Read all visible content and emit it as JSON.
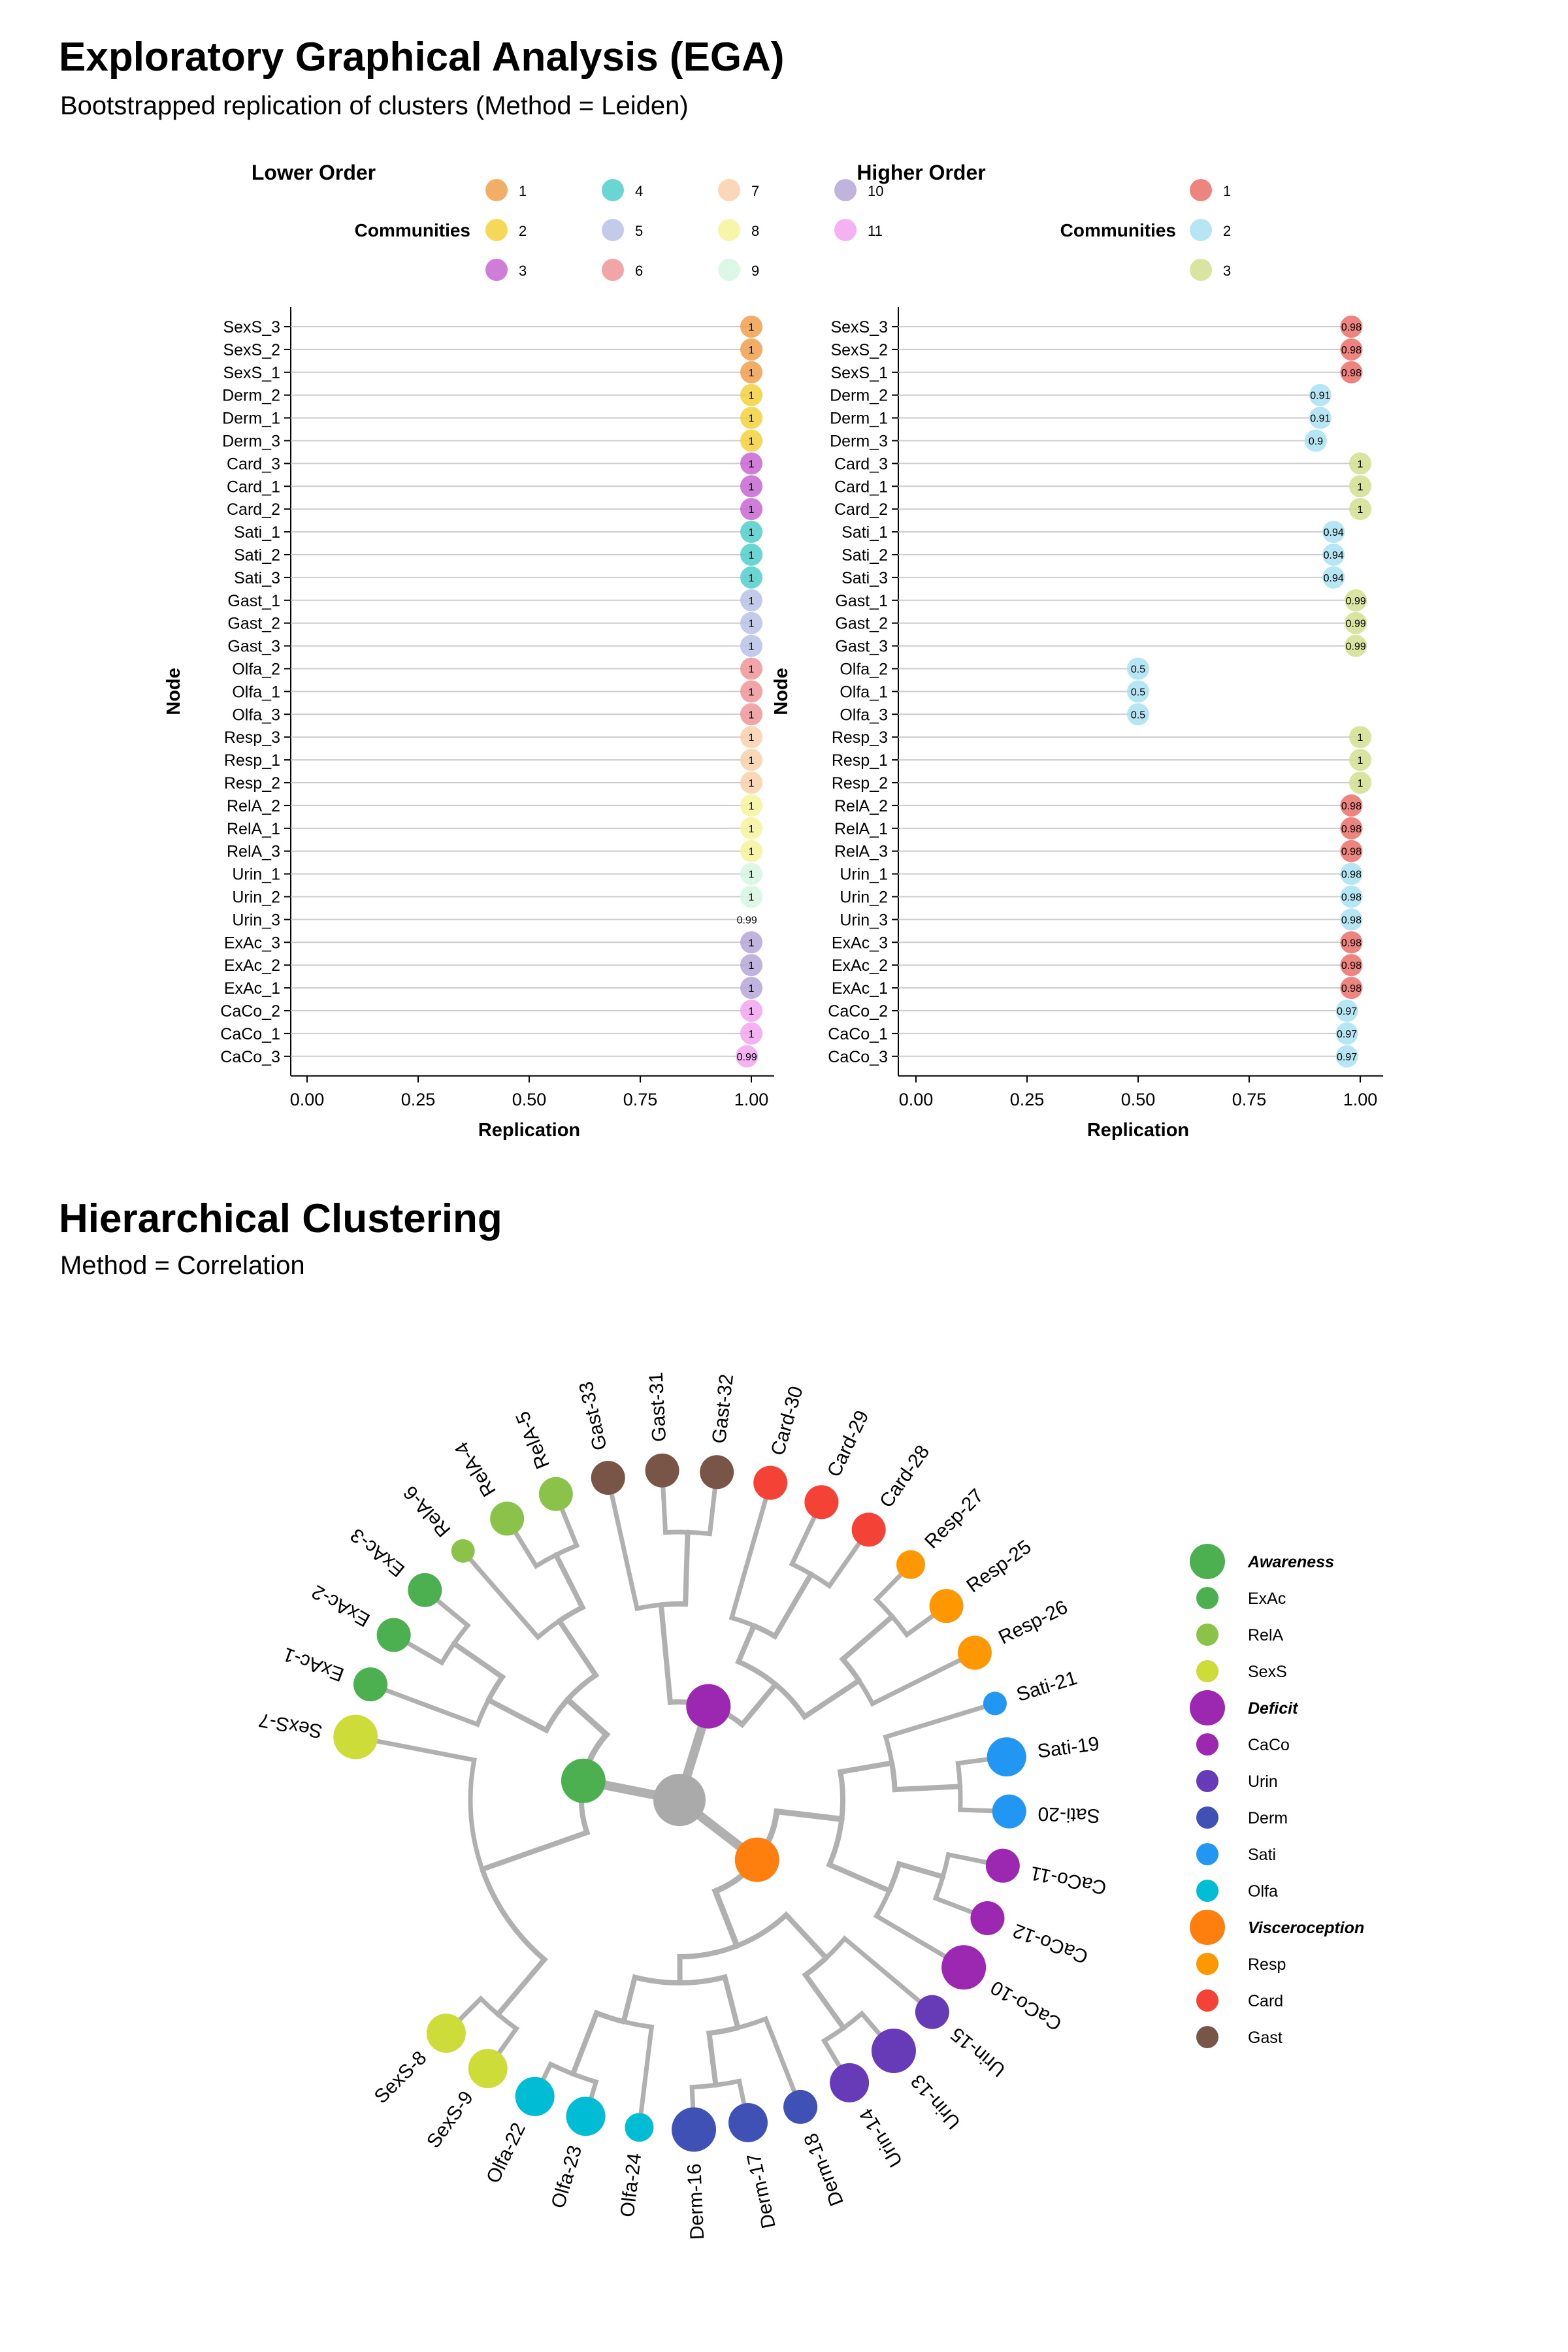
{
  "section1": {
    "title": "Exploratory Graphical Analysis (EGA)",
    "subtitle": "Bootstrapped replication of clusters (Method = Leiden)"
  },
  "section2": {
    "title": "Hierarchical Clustering",
    "subtitle": "Method = Correlation"
  },
  "chart_data": [
    {
      "type": "scatter",
      "title": "Lower Order",
      "xlabel": "Replication",
      "ylabel": "Node",
      "xlim": [
        0,
        1
      ],
      "xticks": [
        "0.00",
        "0.25",
        "0.50",
        "0.75",
        "1.00"
      ],
      "legend_title": "Communities",
      "legend_position": "top",
      "legend": [
        {
          "label": "1",
          "color": "#F0A04B"
        },
        {
          "label": "2",
          "color": "#F5D13C"
        },
        {
          "label": "3",
          "color": "#C766D2"
        },
        {
          "label": "4",
          "color": "#4FCFCB"
        },
        {
          "label": "5",
          "color": "#B7C3E6"
        },
        {
          "label": "6",
          "color": "#EE9597"
        },
        {
          "label": "7",
          "color": "#F8D0AA"
        },
        {
          "label": "8",
          "color": "#F6F39A"
        },
        {
          "label": "9",
          "color": "#D6F6E0"
        },
        {
          "label": "10",
          "color": "#B5A7D8"
        },
        {
          "label": "11",
          "color": "#F3A4F0"
        }
      ],
      "nodes": [
        "SexS_3",
        "SexS_2",
        "SexS_1",
        "Derm_2",
        "Derm_1",
        "Derm_3",
        "Card_3",
        "Card_1",
        "Card_2",
        "Sati_1",
        "Sati_2",
        "Sati_3",
        "Gast_1",
        "Gast_2",
        "Gast_3",
        "Olfa_2",
        "Olfa_1",
        "Olfa_3",
        "Resp_3",
        "Resp_1",
        "Resp_2",
        "RelA_2",
        "RelA_1",
        "RelA_3",
        "Urin_1",
        "Urin_2",
        "Urin_3",
        "ExAc_3",
        "ExAc_2",
        "ExAc_1",
        "CaCo_2",
        "CaCo_1",
        "CaCo_3"
      ],
      "values": [
        1,
        1,
        1,
        1,
        1,
        1,
        1,
        1,
        1,
        1,
        1,
        1,
        1,
        1,
        1,
        1,
        1,
        1,
        1,
        1,
        1,
        1,
        1,
        1,
        1,
        1,
        0.99,
        1,
        1,
        1,
        1,
        1,
        0.99
      ],
      "labels": [
        "1",
        "1",
        "1",
        "1",
        "1",
        "1",
        "1",
        "1",
        "1",
        "1",
        "1",
        "1",
        "1",
        "1",
        "1",
        "1",
        "1",
        "1",
        "1",
        "1",
        "1",
        "1",
        "1",
        "1",
        "1",
        "1",
        "0.99",
        "1",
        "1",
        "1",
        "1",
        "1",
        "0.99"
      ],
      "community": [
        1,
        1,
        1,
        2,
        2,
        2,
        3,
        3,
        3,
        4,
        4,
        4,
        5,
        5,
        5,
        6,
        6,
        6,
        7,
        7,
        7,
        8,
        8,
        8,
        9,
        9,
        null,
        10,
        10,
        10,
        11,
        11,
        11
      ]
    },
    {
      "type": "scatter",
      "title": "Higher Order",
      "xlabel": "Replication",
      "ylabel": "Node",
      "xlim": [
        0,
        1
      ],
      "xticks": [
        "0.00",
        "0.25",
        "0.50",
        "0.75",
        "1.00"
      ],
      "legend_title": "Communities",
      "legend_position": "top",
      "legend": [
        {
          "label": "1",
          "color": "#EB6E68"
        },
        {
          "label": "2",
          "color": "#A9E1F1"
        },
        {
          "label": "3",
          "color": "#D4DF91"
        }
      ],
      "nodes": [
        "SexS_3",
        "SexS_2",
        "SexS_1",
        "Derm_2",
        "Derm_1",
        "Derm_3",
        "Card_3",
        "Card_1",
        "Card_2",
        "Sati_1",
        "Sati_2",
        "Sati_3",
        "Gast_1",
        "Gast_2",
        "Gast_3",
        "Olfa_2",
        "Olfa_1",
        "Olfa_3",
        "Resp_3",
        "Resp_1",
        "Resp_2",
        "RelA_2",
        "RelA_1",
        "RelA_3",
        "Urin_1",
        "Urin_2",
        "Urin_3",
        "ExAc_3",
        "ExAc_2",
        "ExAc_1",
        "CaCo_2",
        "CaCo_1",
        "CaCo_3"
      ],
      "values": [
        0.98,
        0.98,
        0.98,
        0.91,
        0.91,
        0.9,
        1,
        1,
        1,
        0.94,
        0.94,
        0.94,
        0.99,
        0.99,
        0.99,
        0.5,
        0.5,
        0.5,
        1,
        1,
        1,
        0.98,
        0.98,
        0.98,
        0.98,
        0.98,
        0.98,
        0.98,
        0.98,
        0.98,
        0.97,
        0.97,
        0.97
      ],
      "labels": [
        "0.98",
        "0.98",
        "0.98",
        "0.91",
        "0.91",
        "0.9",
        "1",
        "1",
        "1",
        "0.94",
        "0.94",
        "0.94",
        "0.99",
        "0.99",
        "0.99",
        "0.5",
        "0.5",
        "0.5",
        "1",
        "1",
        "1",
        "0.98",
        "0.98",
        "0.98",
        "0.98",
        "0.98",
        "0.98",
        "0.98",
        "0.98",
        "0.98",
        "0.97",
        "0.97",
        "0.97"
      ],
      "community": [
        1,
        1,
        1,
        2,
        2,
        2,
        3,
        3,
        3,
        2,
        2,
        2,
        3,
        3,
        3,
        2,
        2,
        2,
        3,
        3,
        3,
        1,
        1,
        1,
        2,
        2,
        2,
        1,
        1,
        1,
        2,
        2,
        2
      ]
    },
    {
      "type": "dendrogram",
      "layout": "circular",
      "legend_position": "right",
      "legend": [
        {
          "label": "Awareness",
          "color": "#4CAF50",
          "header": true
        },
        {
          "label": "ExAc",
          "color": "#4CAF50"
        },
        {
          "label": "RelA",
          "color": "#8BC34A"
        },
        {
          "label": "SexS",
          "color": "#CDDC39"
        },
        {
          "label": "Deficit",
          "color": "#9C27B0",
          "header": true
        },
        {
          "label": "CaCo",
          "color": "#9C27B0"
        },
        {
          "label": "Urin",
          "color": "#673AB7"
        },
        {
          "label": "Derm",
          "color": "#3F51B5"
        },
        {
          "label": "Sati",
          "color": "#2196F3"
        },
        {
          "label": "Olfa",
          "color": "#00BCD4"
        },
        {
          "label": "Visceroception",
          "color": "#FF7F0E",
          "header": true
        },
        {
          "label": "Resp",
          "color": "#FF9800"
        },
        {
          "label": "Card",
          "color": "#F44336"
        },
        {
          "label": "Gast",
          "color": "#795548"
        }
      ],
      "clusters": [
        {
          "name": "Awareness",
          "color": "#4CAF50"
        },
        {
          "name": "Deficit",
          "color": "#9C27B0"
        },
        {
          "name": "Visceroception",
          "color": "#FF7F0E"
        }
      ],
      "leaves": [
        {
          "label": "SexS-7",
          "group": "SexS",
          "color": "#CDDC39",
          "size": 3
        },
        {
          "label": "ExAc-1",
          "group": "ExAc",
          "color": "#4CAF50",
          "size": 2
        },
        {
          "label": "ExAc-2",
          "group": "ExAc",
          "color": "#4CAF50",
          "size": 2
        },
        {
          "label": "ExAc-3",
          "group": "ExAc",
          "color": "#4CAF50",
          "size": 2
        },
        {
          "label": "RelA-6",
          "group": "RelA",
          "color": "#8BC34A",
          "size": 1
        },
        {
          "label": "RelA-4",
          "group": "RelA",
          "color": "#8BC34A",
          "size": 2
        },
        {
          "label": "RelA-5",
          "group": "RelA",
          "color": "#8BC34A",
          "size": 2
        },
        {
          "label": "Gast-33",
          "group": "Gast",
          "color": "#795548",
          "size": 2
        },
        {
          "label": "Gast-31",
          "group": "Gast",
          "color": "#795548",
          "size": 2
        },
        {
          "label": "Gast-32",
          "group": "Gast",
          "color": "#795548",
          "size": 2
        },
        {
          "label": "Card-30",
          "group": "Card",
          "color": "#F44336",
          "size": 2
        },
        {
          "label": "Card-29",
          "group": "Card",
          "color": "#F44336",
          "size": 2
        },
        {
          "label": "Card-28",
          "group": "Card",
          "color": "#F44336",
          "size": 2
        },
        {
          "label": "Resp-27",
          "group": "Resp",
          "color": "#FF9800",
          "size": 1.5
        },
        {
          "label": "Resp-25",
          "group": "Resp",
          "color": "#FF9800",
          "size": 2
        },
        {
          "label": "Resp-26",
          "group": "Resp",
          "color": "#FF9800",
          "size": 2
        },
        {
          "label": "Sati-21",
          "group": "Sati",
          "color": "#2196F3",
          "size": 1
        },
        {
          "label": "Sati-19",
          "group": "Sati",
          "color": "#2196F3",
          "size": 2.5
        },
        {
          "label": "Sati-20",
          "group": "Sati",
          "color": "#2196F3",
          "size": 2
        },
        {
          "label": "CaCo-11",
          "group": "CaCo",
          "color": "#9C27B0",
          "size": 2
        },
        {
          "label": "CaCo-12",
          "group": "CaCo",
          "color": "#9C27B0",
          "size": 2
        },
        {
          "label": "CaCo-10",
          "group": "CaCo",
          "color": "#9C27B0",
          "size": 3
        },
        {
          "label": "Urin-15",
          "group": "Urin",
          "color": "#673AB7",
          "size": 2
        },
        {
          "label": "Urin-13",
          "group": "Urin",
          "color": "#673AB7",
          "size": 3
        },
        {
          "label": "Urin-14",
          "group": "Urin",
          "color": "#673AB7",
          "size": 2.5
        },
        {
          "label": "Derm-18",
          "group": "Derm",
          "color": "#3F51B5",
          "size": 2
        },
        {
          "label": "Derm-17",
          "group": "Derm",
          "color": "#3F51B5",
          "size": 2.5
        },
        {
          "label": "Derm-16",
          "group": "Derm",
          "color": "#3F51B5",
          "size": 3
        },
        {
          "label": "Olfa-24",
          "group": "Olfa",
          "color": "#00BCD4",
          "size": 1.5
        },
        {
          "label": "Olfa-23",
          "group": "Olfa",
          "color": "#00BCD4",
          "size": 2.5
        },
        {
          "label": "Olfa-22",
          "group": "Olfa",
          "color": "#00BCD4",
          "size": 2.5
        },
        {
          "label": "SexS-9",
          "group": "SexS",
          "color": "#CDDC39",
          "size": 2.5
        },
        {
          "label": "SexS-8",
          "group": "SexS",
          "color": "#CDDC39",
          "size": 2.5
        }
      ]
    }
  ]
}
